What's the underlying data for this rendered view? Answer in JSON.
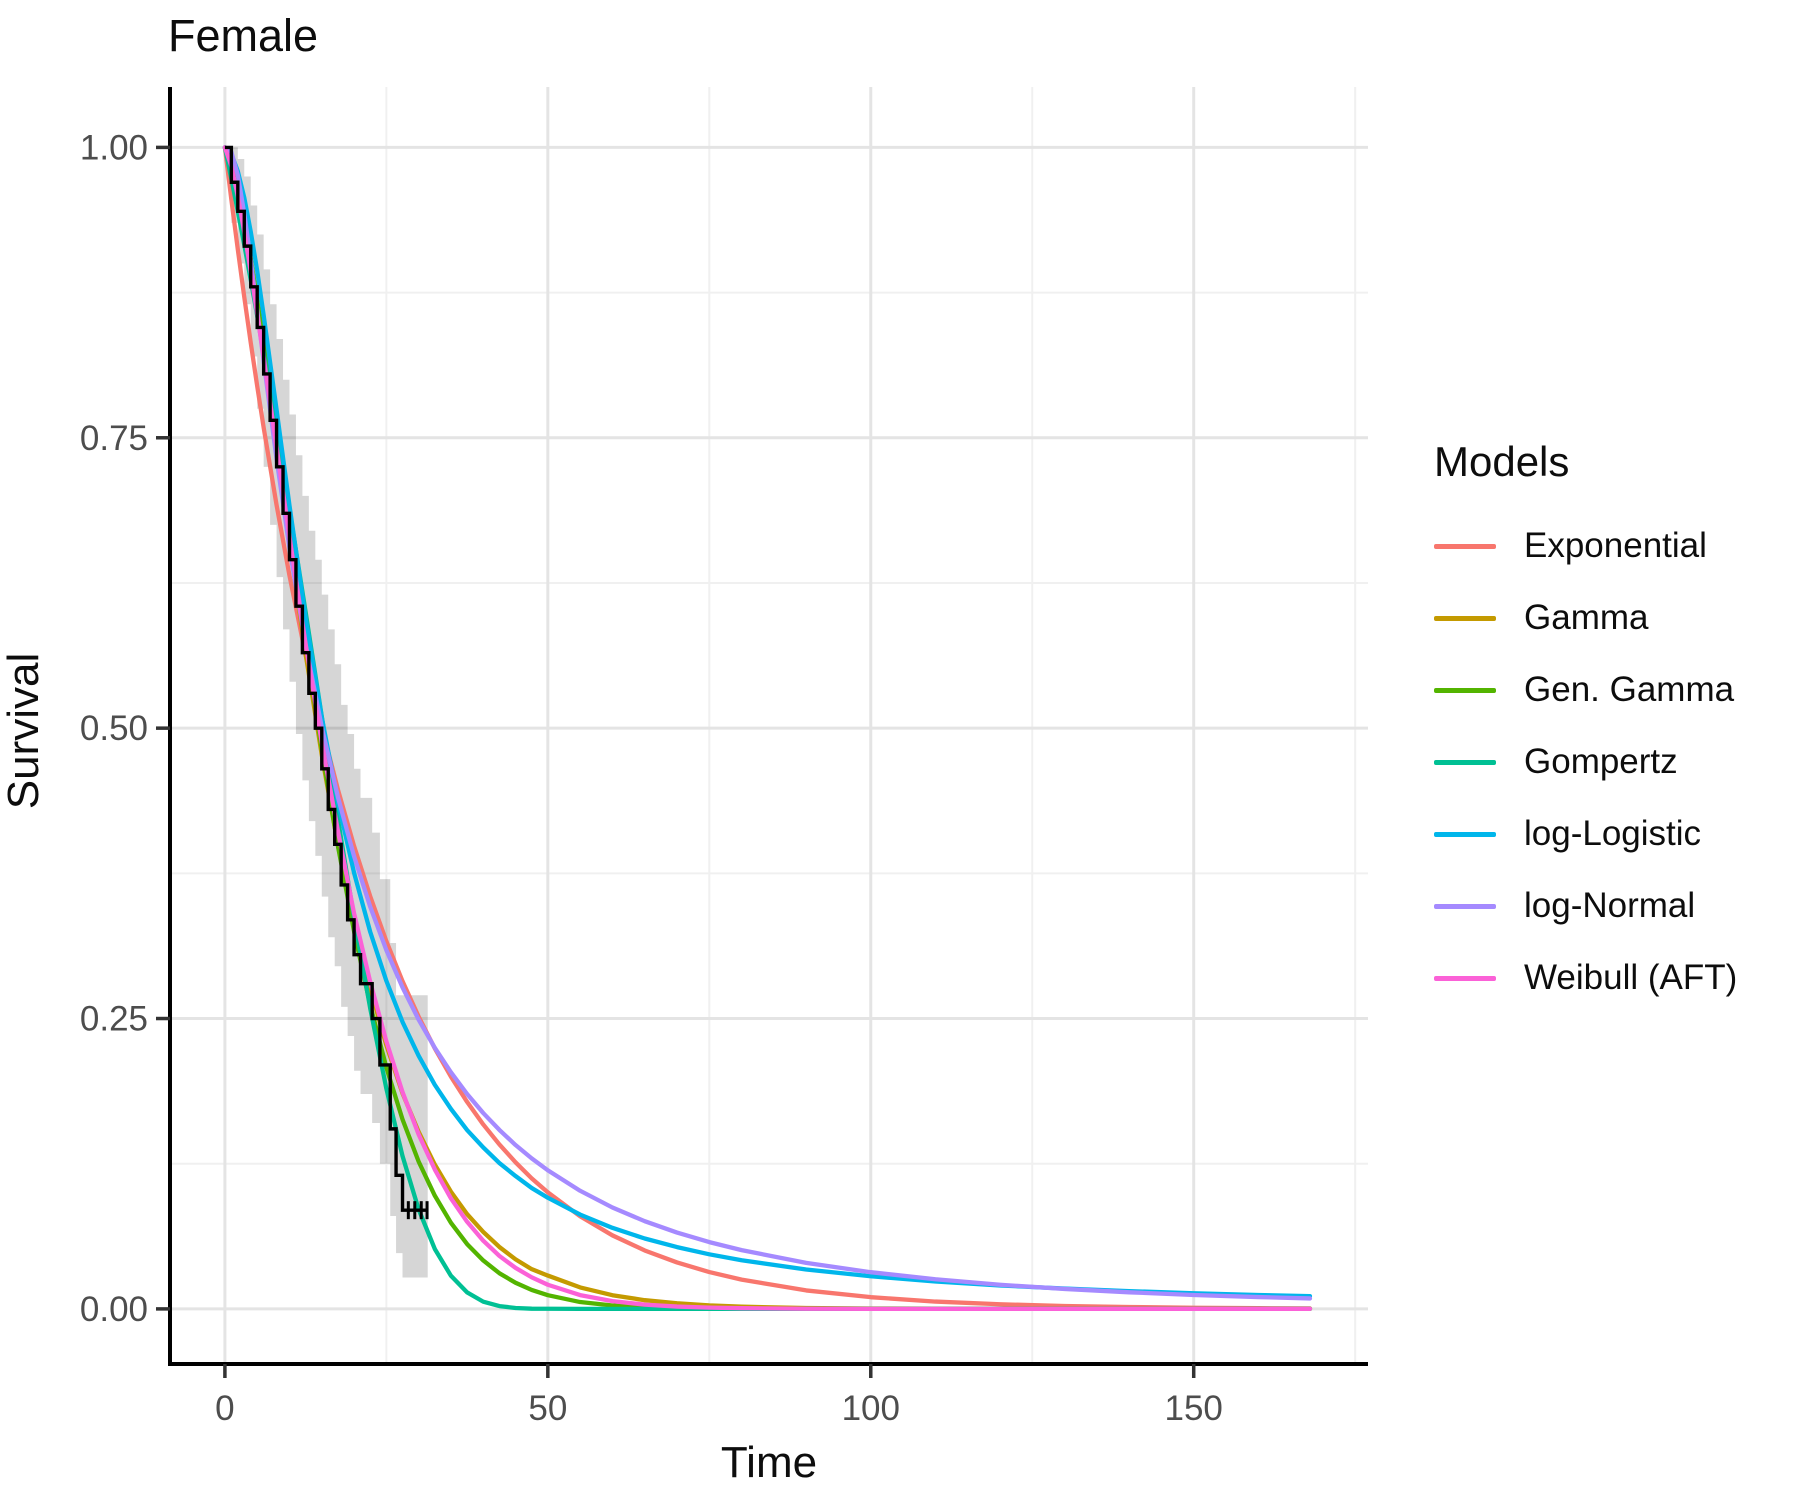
{
  "title": "Female",
  "axes": {
    "x": {
      "label": "Time",
      "tick_labels": [
        "0",
        "50",
        "100",
        "150"
      ],
      "tick_values": [
        0,
        50,
        100,
        150
      ],
      "minor_values": [
        25,
        75,
        125,
        175
      ]
    },
    "y": {
      "label": "Survival",
      "tick_labels": [
        "1.00",
        "0.75",
        "0.50",
        "0.25",
        "0.00"
      ],
      "tick_values": [
        1,
        0.75,
        0.5,
        0.25,
        0
      ],
      "minor_values": [
        0.875,
        0.625,
        0.375,
        0.125
      ]
    }
  },
  "legend": {
    "title": "Models",
    "items": [
      {
        "label": "Exponential",
        "color": "#F8766D"
      },
      {
        "label": "Gamma",
        "color": "#C49A00"
      },
      {
        "label": "Gen. Gamma",
        "color": "#53B400"
      },
      {
        "label": "Gompertz",
        "color": "#00C094"
      },
      {
        "label": "log-Logistic",
        "color": "#00B6EB"
      },
      {
        "label": "log-Normal",
        "color": "#A58AFF"
      },
      {
        "label": "Weibull (AFT)",
        "color": "#FB61D7"
      }
    ]
  },
  "colors": {
    "grid_major": "#E4E4E4",
    "grid_minor": "#F0F0F0",
    "axis_line": "#000000",
    "tick_mark": "#333333",
    "tick_text": "#4d4d4d",
    "km_line": "#000000",
    "ribbon": "rgba(0,0,0,0.16)"
  },
  "chart_data": {
    "type": "line",
    "title": "Female",
    "xlabel": "Time",
    "ylabel": "Survival",
    "xlim": [
      0,
      168
    ],
    "ylim": [
      0,
      1
    ],
    "x_ticks": [
      0,
      50,
      100,
      150
    ],
    "y_ticks": [
      1,
      0.75,
      0.5,
      0.25,
      0
    ],
    "grid": "major+minor",
    "legend_position": "right",
    "t": [
      0,
      1,
      2,
      3,
      4,
      5,
      6,
      8,
      10,
      12.5,
      15,
      17.5,
      20,
      22.5,
      25,
      27.5,
      30,
      32.5,
      35,
      37.5,
      40,
      42.5,
      45,
      47.5,
      50,
      55,
      60,
      65,
      70,
      75,
      80,
      90,
      100,
      110,
      120,
      130,
      140,
      150,
      160,
      168
    ],
    "series": [
      {
        "name": "Exponential",
        "color": "#F8766D",
        "s": [
          1,
          0.955,
          0.9121,
          0.8711,
          0.8319,
          0.7945,
          0.7588,
          0.6921,
          0.6313,
          0.5627,
          0.5016,
          0.4471,
          0.3985,
          0.3552,
          0.3166,
          0.2822,
          0.2516,
          0.2243,
          0.1999,
          0.1782,
          0.1588,
          0.1416,
          0.1262,
          0.1124,
          0.1003,
          0.0797,
          0.0633,
          0.0503,
          0.04,
          0.0317,
          0.0252,
          0.0159,
          0.0101,
          0.0063,
          0.004,
          0.0025,
          0.0016,
          0.001,
          0.0006,
          0.0004
        ]
      },
      {
        "name": "Gamma",
        "color": "#C49A00",
        "s": [
          1,
          0.9896,
          0.9672,
          0.9374,
          0.9025,
          0.8644,
          0.8244,
          0.7419,
          0.6603,
          0.5639,
          0.4768,
          0.3991,
          0.3326,
          0.276,
          0.227,
          0.1856,
          0.1524,
          0.1243,
          0.1009,
          0.0816,
          0.0663,
          0.0533,
          0.0427,
          0.0342,
          0.0287,
          0.0185,
          0.0118,
          0.0075,
          0.0048,
          0.003,
          0.0019,
          0.0008,
          0.0003,
          0.0002,
          0.0001,
          0.0001,
          0,
          0,
          0,
          0
        ]
      },
      {
        "name": "Gen. Gamma",
        "color": "#53B400",
        "s": [
          1,
          0.9875,
          0.9651,
          0.9368,
          0.9043,
          0.869,
          0.8314,
          0.7525,
          0.6721,
          0.5739,
          0.4819,
          0.3985,
          0.325,
          0.2615,
          0.2078,
          0.1632,
          0.1268,
          0.0975,
          0.0741,
          0.0558,
          0.0417,
          0.0307,
          0.0225,
          0.0163,
          0.0118,
          0.0059,
          0.0029,
          0.0014,
          0.0006,
          0.0003,
          0.0001,
          0.0001,
          0,
          0,
          0,
          0,
          0,
          0,
          0,
          0
        ]
      },
      {
        "name": "Gompertz",
        "color": "#00C094",
        "s": [
          1,
          0.973,
          0.945,
          0.916,
          0.886,
          0.8551,
          0.8233,
          0.7573,
          0.6885,
          0.5999,
          0.5101,
          0.4215,
          0.3368,
          0.2587,
          0.1896,
          0.1316,
          0.0856,
          0.0516,
          0.0285,
          0.0142,
          0.0062,
          0.0024,
          0.0008,
          0.0002,
          0.0001,
          0,
          0,
          0,
          0,
          0,
          0,
          0,
          0,
          0,
          0,
          0,
          0,
          0,
          0,
          0
        ]
      },
      {
        "name": "log-Logistic",
        "color": "#00B6EB",
        "s": [
          1,
          0.9944,
          0.9795,
          0.9567,
          0.9275,
          0.8937,
          0.8555,
          0.7742,
          0.6917,
          0.5949,
          0.5094,
          0.4365,
          0.3754,
          0.3246,
          0.2824,
          0.2471,
          0.2179,
          0.1929,
          0.1722,
          0.154,
          0.139,
          0.1256,
          0.1144,
          0.1041,
          0.0957,
          0.0812,
          0.0698,
          0.0606,
          0.0532,
          0.047,
          0.0419,
          0.0339,
          0.0281,
          0.0236,
          0.0202,
          0.0175,
          0.0153,
          0.0135,
          0.012,
          0.011
        ]
      },
      {
        "name": "log-Normal",
        "color": "#A58AFF",
        "s": [
          1,
          0.9961,
          0.976,
          0.9429,
          0.9028,
          0.8597,
          0.816,
          0.7318,
          0.6552,
          0.5717,
          0.5008,
          0.4407,
          0.3897,
          0.3462,
          0.3089,
          0.2768,
          0.249,
          0.2248,
          0.2037,
          0.185,
          0.1686,
          0.1541,
          0.1411,
          0.1296,
          0.1193,
          0.1017,
          0.0873,
          0.0755,
          0.0657,
          0.0575,
          0.0506,
          0.0396,
          0.0316,
          0.0255,
          0.0208,
          0.0172,
          0.0143,
          0.012,
          0.0102,
          0.009
        ]
      },
      {
        "name": "Weibull (AFT)",
        "color": "#FB61D7",
        "s": [
          1,
          0.9839,
          0.9581,
          0.9272,
          0.8931,
          0.8567,
          0.8191,
          0.7419,
          0.6648,
          0.5723,
          0.4876,
          0.4114,
          0.3405,
          0.2816,
          0.2303,
          0.1867,
          0.1502,
          0.12,
          0.0951,
          0.075,
          0.0587,
          0.0456,
          0.0353,
          0.0272,
          0.0208,
          0.0119,
          0.0067,
          0.0037,
          0.002,
          0.0011,
          0.0006,
          0.0001,
          0,
          0,
          0,
          0,
          0,
          0,
          0,
          0
        ]
      }
    ],
    "km": {
      "name": "Kaplan-Meier (observed)",
      "color": "#000000",
      "steps": [
        [
          0,
          1
        ],
        [
          1,
          0.97
        ],
        [
          2,
          0.945
        ],
        [
          3,
          0.915
        ],
        [
          4,
          0.88
        ],
        [
          5,
          0.845
        ],
        [
          6,
          0.805
        ],
        [
          7,
          0.765
        ],
        [
          8,
          0.725
        ],
        [
          9,
          0.685
        ],
        [
          10,
          0.645
        ],
        [
          11,
          0.605
        ],
        [
          12,
          0.565
        ],
        [
          13,
          0.53
        ],
        [
          14,
          0.5
        ],
        [
          15,
          0.465
        ],
        [
          16,
          0.43
        ],
        [
          17,
          0.4
        ],
        [
          18,
          0.365
        ],
        [
          19,
          0.335
        ],
        [
          20,
          0.305
        ],
        [
          21,
          0.28
        ],
        [
          22.8,
          0.25
        ],
        [
          24,
          0.21
        ],
        [
          25.6,
          0.155
        ],
        [
          26.5,
          0.115
        ],
        [
          27.5,
          0.085
        ],
        [
          31.4,
          0.085
        ]
      ],
      "censor_times": [
        28.4,
        29.4,
        30.4,
        31.3
      ],
      "censor_s": 0.085
    },
    "ribbon": {
      "name": "95% confidence interval",
      "steps": [
        [
          0,
          1,
          1
        ],
        [
          1,
          1,
          0.935
        ],
        [
          2,
          0.99,
          0.9
        ],
        [
          3,
          0.975,
          0.865
        ],
        [
          4,
          0.95,
          0.82
        ],
        [
          5,
          0.925,
          0.775
        ],
        [
          6,
          0.895,
          0.725
        ],
        [
          7,
          0.865,
          0.675
        ],
        [
          8,
          0.835,
          0.63
        ],
        [
          9,
          0.8,
          0.585
        ],
        [
          10,
          0.77,
          0.54
        ],
        [
          11,
          0.735,
          0.495
        ],
        [
          12,
          0.7,
          0.455
        ],
        [
          13,
          0.67,
          0.42
        ],
        [
          14,
          0.645,
          0.39
        ],
        [
          15,
          0.615,
          0.355
        ],
        [
          16,
          0.585,
          0.32
        ],
        [
          17,
          0.555,
          0.295
        ],
        [
          18,
          0.52,
          0.26
        ],
        [
          19,
          0.495,
          0.235
        ],
        [
          20,
          0.465,
          0.205
        ],
        [
          21,
          0.44,
          0.185
        ],
        [
          22.8,
          0.41,
          0.16
        ],
        [
          24,
          0.37,
          0.125
        ],
        [
          25.6,
          0.315,
          0.08
        ],
        [
          26.5,
          0.27,
          0.048
        ],
        [
          27.5,
          0.27,
          0.027
        ],
        [
          31.4,
          0.27,
          0.027
        ]
      ]
    }
  }
}
